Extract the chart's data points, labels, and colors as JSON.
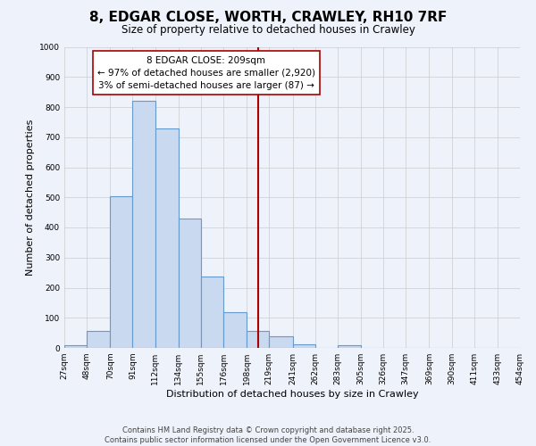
{
  "title": "8, EDGAR CLOSE, WORTH, CRAWLEY, RH10 7RF",
  "subtitle": "Size of property relative to detached houses in Crawley",
  "xlabel": "Distribution of detached houses by size in Crawley",
  "ylabel": "Number of detached properties",
  "bin_edges": [
    27,
    48,
    70,
    91,
    112,
    134,
    155,
    176,
    198,
    219,
    241,
    262,
    283,
    305,
    326,
    347,
    369,
    390,
    411,
    433,
    454
  ],
  "bin_labels": [
    "27sqm",
    "48sqm",
    "70sqm",
    "91sqm",
    "112sqm",
    "134sqm",
    "155sqm",
    "176sqm",
    "198sqm",
    "219sqm",
    "241sqm",
    "262sqm",
    "283sqm",
    "305sqm",
    "326sqm",
    "347sqm",
    "369sqm",
    "390sqm",
    "411sqm",
    "433sqm",
    "454sqm"
  ],
  "counts": [
    8,
    55,
    505,
    820,
    730,
    430,
    238,
    118,
    57,
    38,
    12,
    0,
    10,
    0,
    0,
    0,
    0,
    0,
    0,
    0
  ],
  "bar_color": "#c9d9f0",
  "bar_edge_color": "#6699cc",
  "vline_x": 209,
  "vline_color": "#aa0000",
  "annotation_line1": "8 EDGAR CLOSE: 209sqm",
  "annotation_line2": "← 97% of detached houses are smaller (2,920)",
  "annotation_line3": "3% of semi-detached houses are larger (87) →",
  "annotation_box_edge_color": "#aa0000",
  "annotation_fontsize": 7.5,
  "ylim": [
    0,
    1000
  ],
  "yticks": [
    0,
    100,
    200,
    300,
    400,
    500,
    600,
    700,
    800,
    900,
    1000
  ],
  "grid_color": "#cccccc",
  "background_color": "#eef2fb",
  "footer_line1": "Contains HM Land Registry data © Crown copyright and database right 2025.",
  "footer_line2": "Contains public sector information licensed under the Open Government Licence v3.0.",
  "title_fontsize": 11,
  "subtitle_fontsize": 8.5,
  "axis_label_fontsize": 8,
  "tick_fontsize": 6.5,
  "footer_fontsize": 6
}
